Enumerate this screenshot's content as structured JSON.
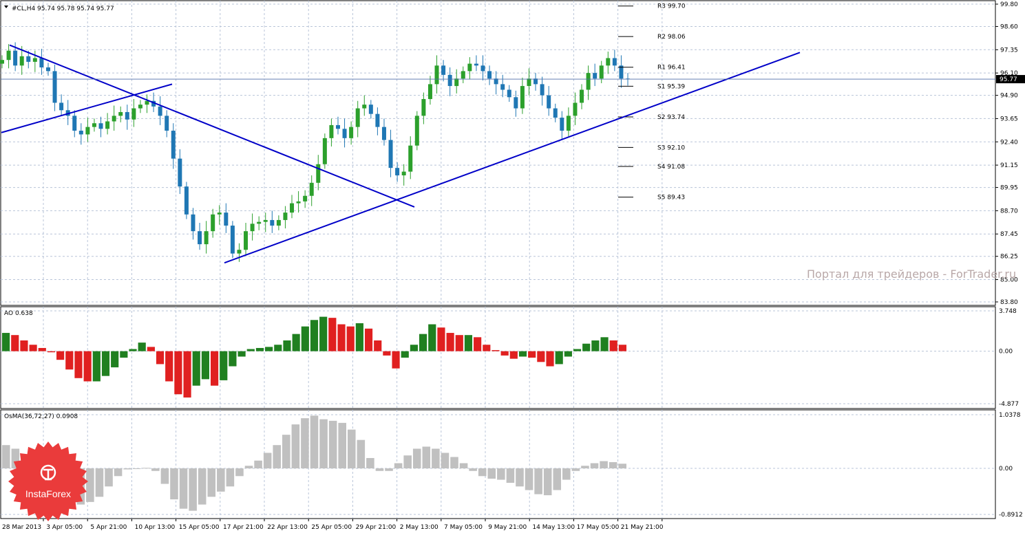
{
  "window": {
    "main_header": "#CL,H4  95.74 95.78 95.74 95.77",
    "ao_header": "AO 0.638",
    "osma_header": "OsMA(36,72,27) 0.0908",
    "watermark": "Портал для трейдеров - ForTrader.ru",
    "logo_text": "InstaForex"
  },
  "chart_data": [
    {
      "type": "candlestick",
      "title": "#CL,H4",
      "ylim": [
        83.8,
        99.8
      ],
      "ticks": [
        "99.80",
        "98.60",
        "97.35",
        "96.10",
        "94.90",
        "93.65",
        "92.40",
        "91.15",
        "89.95",
        "88.70",
        "87.45",
        "86.25",
        "85.00",
        "83.80"
      ],
      "tick_values": [
        99.8,
        98.6,
        97.35,
        96.1,
        94.9,
        93.65,
        92.4,
        91.15,
        89.95,
        88.7,
        87.45,
        86.25,
        85.0,
        83.8
      ],
      "current_price": 95.77,
      "current_price_label": "95.77",
      "x_labels": [
        "28 Mar 2013",
        "3 Apr 05:00",
        "5 Apr 21:00",
        "10 Apr 13:00",
        "15 Apr 05:00",
        "17 Apr 21:00",
        "22 Apr 13:00",
        "25 Apr 05:00",
        "29 Apr 21:00",
        "2 May 13:00",
        "7 May 05:00",
        "9 May 21:00",
        "14 May 13:00",
        "17 May 05:00",
        "21 May 21:00"
      ],
      "close_path": [
        96.8,
        97.3,
        96.5,
        97.0,
        96.7,
        96.9,
        96.4,
        96.2,
        94.5,
        94.1,
        93.8,
        93.0,
        92.8,
        93.2,
        93.4,
        93.1,
        93.5,
        93.8,
        94.0,
        93.6,
        94.2,
        94.4,
        94.6,
        94.3,
        93.8,
        93.0,
        91.5,
        90.0,
        88.5,
        87.6,
        86.9,
        87.6,
        88.5,
        88.6,
        87.9,
        86.4,
        86.6,
        87.6,
        88.0,
        88.1,
        88.2,
        87.9,
        88.2,
        88.6,
        89.1,
        89.2,
        89.5,
        90.2,
        91.2,
        92.6,
        93.3,
        93.1,
        92.6,
        93.2,
        94.2,
        94.4,
        93.9,
        93.2,
        92.5,
        91.0,
        90.6,
        90.8,
        92.2,
        93.8,
        94.7,
        95.5,
        96.5,
        96.0,
        95.4,
        95.8,
        96.2,
        96.6,
        96.5,
        96.2,
        95.8,
        95.5,
        95.2,
        94.8,
        94.2,
        95.4,
        95.8,
        95.5,
        94.9,
        94.2,
        93.7,
        93.0,
        93.8,
        94.5,
        95.2,
        96.1,
        95.8,
        96.5,
        96.9,
        96.5,
        95.8,
        95.77
      ],
      "pivots": [
        {
          "label": "R3 99.70",
          "value": 99.7
        },
        {
          "label": "R2 98.06",
          "value": 98.06
        },
        {
          "label": "R1 96.41",
          "value": 96.41
        },
        {
          "label": "S1 95.39",
          "value": 95.39
        },
        {
          "label": "S2 93.74",
          "value": 93.74
        },
        {
          "label": "S3 92.10",
          "value": 92.1
        },
        {
          "label": "S4 91.08",
          "value": 91.08
        },
        {
          "label": "S5 89.43",
          "value": 89.43
        }
      ],
      "trendlines": [
        {
          "name": "descending",
          "from": [
            "28 Mar 2013",
            97.6
          ],
          "to": [
            "2 May 13:00",
            88.9
          ]
        },
        {
          "name": "rising-left",
          "from": [
            "28 Mar 2013",
            92.9
          ],
          "to": [
            "10 Apr 13:00",
            95.5
          ]
        },
        {
          "name": "rising-support",
          "from": [
            "17 Apr 21:00",
            85.9
          ],
          "to": [
            "21 May 21:00",
            97.2
          ]
        }
      ],
      "colors": {
        "bull": "#2ca02c",
        "bear": "#1f77b4",
        "trend": "#0000c8",
        "price_line": "#4f6ea8"
      }
    },
    {
      "type": "bar",
      "title": "AO 0.638",
      "ylim": [
        -4.877,
        3.748
      ],
      "ticks": [
        "3.748",
        "0.00",
        "-4.877"
      ],
      "tick_values": [
        3.748,
        0.0,
        -4.877
      ],
      "values": [
        1.7,
        1.5,
        1.0,
        0.6,
        0.3,
        -0.1,
        -0.8,
        -1.7,
        -2.5,
        -2.8,
        -2.8,
        -2.3,
        -1.5,
        -0.6,
        0.2,
        0.8,
        0.4,
        -1.2,
        -2.8,
        -4.0,
        -4.3,
        -3.2,
        -2.6,
        -3.2,
        -2.7,
        -1.4,
        -0.5,
        0.2,
        0.3,
        0.4,
        0.6,
        1.0,
        1.6,
        2.3,
        2.9,
        3.2,
        3.1,
        2.5,
        2.3,
        2.6,
        2.1,
        1.0,
        -0.4,
        -1.6,
        -0.6,
        0.6,
        1.6,
        2.5,
        2.2,
        1.7,
        1.5,
        1.5,
        1.3,
        0.6,
        0.1,
        -0.4,
        -0.7,
        -0.5,
        -0.6,
        -1.0,
        -1.4,
        -1.2,
        -0.5,
        0.2,
        0.7,
        1.0,
        1.3,
        1.0,
        0.6
      ],
      "colors": {
        "up": "#208020",
        "down": "#e02020"
      }
    },
    {
      "type": "bar",
      "title": "OsMA(36,72,27) 0.0908",
      "ylim": [
        -0.8912,
        1.0378
      ],
      "ticks": [
        "1.0378",
        "0.00",
        "-0.8912"
      ],
      "tick_values": [
        1.0378,
        0.0,
        -0.8912
      ],
      "values": [
        0.45,
        0.38,
        0.25,
        0.1,
        -0.05,
        -0.2,
        -0.4,
        -0.6,
        -0.7,
        -0.65,
        -0.55,
        -0.35,
        -0.15,
        -0.02,
        0.0,
        0.01,
        -0.05,
        -0.3,
        -0.6,
        -0.78,
        -0.82,
        -0.7,
        -0.55,
        -0.45,
        -0.35,
        -0.15,
        0.05,
        0.15,
        0.3,
        0.45,
        0.65,
        0.85,
        0.97,
        1.02,
        0.95,
        0.92,
        0.88,
        0.75,
        0.55,
        0.2,
        -0.05,
        -0.05,
        0.1,
        0.25,
        0.38,
        0.42,
        0.38,
        0.3,
        0.22,
        0.1,
        -0.05,
        -0.15,
        -0.2,
        -0.22,
        -0.28,
        -0.35,
        -0.42,
        -0.5,
        -0.52,
        -0.42,
        -0.22,
        -0.05,
        0.05,
        0.1,
        0.14,
        0.12,
        0.09
      ],
      "colors": {
        "bar": "#c0c0c0"
      }
    }
  ]
}
